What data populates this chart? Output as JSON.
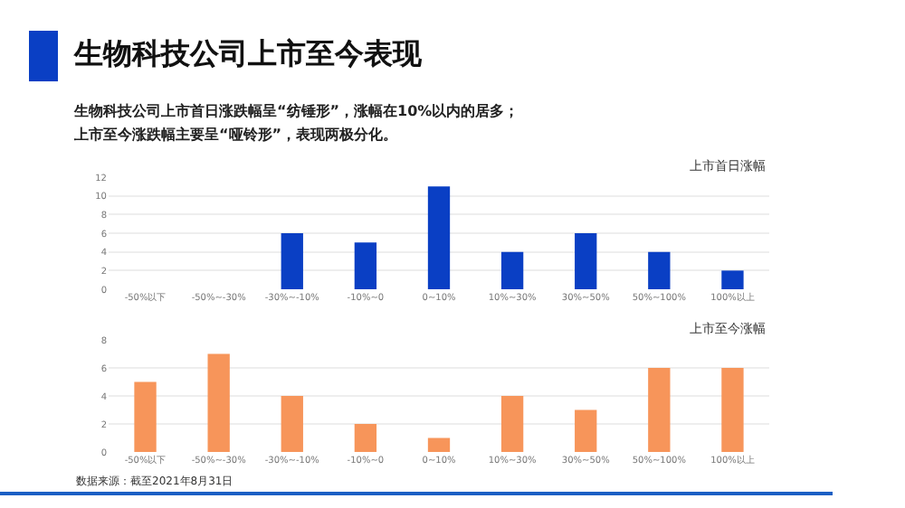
{
  "chart_data": [
    {
      "type": "bar",
      "title": "生物科技公司上市至今表现",
      "subtitle": "生物科技公司上市首日涨跌幅呈“纺锤形”，涨幅在10%以内的居多；上市至今涨跌幅主要呈“哑铃形”，表现两极分化。",
      "annotations": [
        "上市首日涨幅"
      ],
      "categories": [
        "-50%以下",
        "-50%~-30%",
        "-30%~-10%",
        "-10%~0",
        "0~10%",
        "10%~30%",
        "30%~50%",
        "50%~100%",
        "100%以上"
      ],
      "values": [
        0,
        0,
        6,
        5,
        11,
        4,
        6,
        4,
        2
      ],
      "color": "#0a3fc4",
      "ylim": [
        0,
        12
      ],
      "yticks": [
        0,
        2,
        4,
        6,
        8,
        10,
        12
      ],
      "grid": "y"
    },
    {
      "type": "bar",
      "annotations": [
        "上市至今涨幅",
        "数据来源：截至2021年8月31日"
      ],
      "categories": [
        "-50%以下",
        "-50%~-30%",
        "-30%~-10%",
        "-10%~0",
        "0~10%",
        "10%~30%",
        "30%~50%",
        "50%~100%",
        "100%以上"
      ],
      "values": [
        5,
        7,
        4,
        2,
        1,
        4,
        3,
        6,
        6
      ],
      "color": "#f7955a",
      "ylim": [
        0,
        8
      ],
      "yticks": [
        0,
        2,
        4,
        6,
        8
      ],
      "grid": "y"
    }
  ]
}
